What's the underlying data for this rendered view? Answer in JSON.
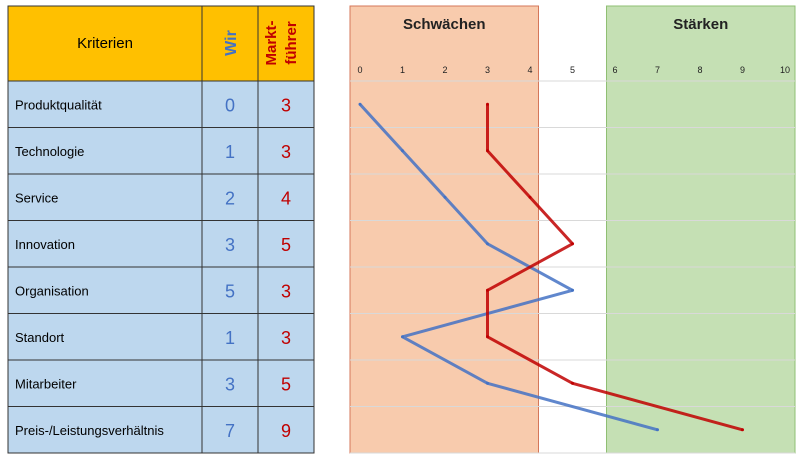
{
  "table": {
    "header": {
      "criteria": "Kriterien",
      "us": "Wir",
      "leader_line1": "Markt-",
      "leader_line2": "führer"
    },
    "rows": [
      {
        "label": "Produktqualität",
        "us": "0",
        "leader": "3"
      },
      {
        "label": "Technologie",
        "us": "1",
        "leader": "3"
      },
      {
        "label": "Service",
        "us": "2",
        "leader": "4"
      },
      {
        "label": "Innovation",
        "us": "3",
        "leader": "5"
      },
      {
        "label": "Organisation",
        "us": "5",
        "leader": "3"
      },
      {
        "label": "Standort",
        "us": "1",
        "leader": "3"
      },
      {
        "label": "Mitarbeiter",
        "us": "3",
        "leader": "5"
      },
      {
        "label": "Preis-/Leistungsverhältnis",
        "us": "7",
        "leader": "9"
      }
    ]
  },
  "colors": {
    "header_bg": "#ffc000",
    "row_bg": "#bdd7ee",
    "us": "#4472c4",
    "leader": "#c00000",
    "weakness_band": "#f8cbad",
    "strength_band": "#c5e0b4"
  },
  "chart_data": {
    "type": "line",
    "orientation": "vertical-profile",
    "bands": [
      {
        "label": "Schwächen",
        "from": 0,
        "to": 4.2
      },
      {
        "label": "Stärken",
        "from": 5.8,
        "to": 10
      }
    ],
    "xlim": [
      0,
      10
    ],
    "x_tick_labels": [
      "0",
      "1",
      "2",
      "3",
      "4",
      "5",
      "6",
      "7",
      "8",
      "9",
      "10"
    ],
    "categories": [
      "Produktqualität",
      "Technologie",
      "Service",
      "Innovation",
      "Organisation",
      "Standort",
      "Mitarbeiter",
      "Preis-/Leistungsverhältnis"
    ],
    "series": [
      {
        "name": "Wir",
        "values": [
          0,
          1,
          2,
          3,
          5,
          1,
          3,
          7
        ]
      },
      {
        "name": "Marktführer",
        "values": [
          3,
          3,
          4,
          5,
          3,
          3,
          5,
          9
        ]
      }
    ]
  }
}
